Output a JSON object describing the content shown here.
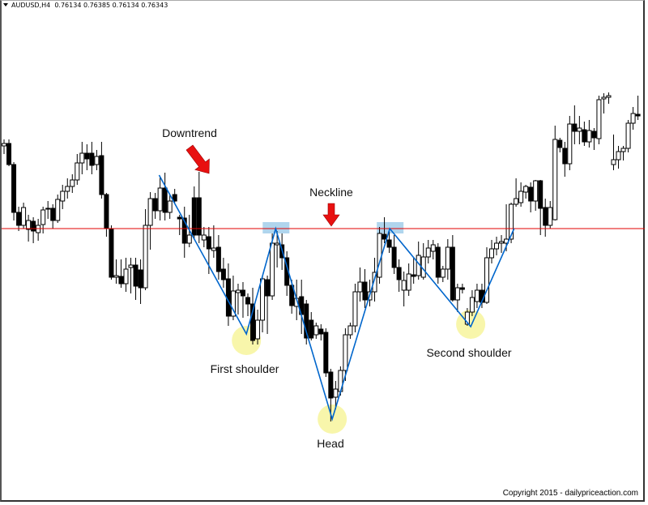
{
  "header": {
    "symbol": "AUDUSD,H4",
    "ohlc": "0.76134 0.76385 0.76134 0.76343"
  },
  "copyright": "Copyright 2015 - dailypriceaction.com",
  "colors": {
    "neckline": "#e00000",
    "pattern_line": "#0066cc",
    "highlight_circle": "#f7f59c",
    "highlight_box": "#9ccbe8",
    "arrow": "#e81010",
    "bull_body": "#ffffff",
    "bear_body": "#000000"
  },
  "chart_data": {
    "type": "candlestick",
    "title": "AUDUSD,H4",
    "grid": false,
    "neckline": 0.7471,
    "candles": [
      [
        0.7573,
        0.7581,
        0.7563,
        0.7576
      ],
      [
        0.7576,
        0.7581,
        0.7548,
        0.755
      ],
      [
        0.755,
        0.7553,
        0.7481,
        0.7491
      ],
      [
        0.7491,
        0.7498,
        0.7468,
        0.7475
      ],
      [
        0.7475,
        0.7503,
        0.7471,
        0.7497
      ],
      [
        0.747,
        0.7488,
        0.7455,
        0.7481
      ],
      [
        0.748,
        0.7485,
        0.7453,
        0.7468
      ],
      [
        0.7466,
        0.7483,
        0.7456,
        0.7475
      ],
      [
        0.7476,
        0.7498,
        0.7465,
        0.7494
      ],
      [
        0.7495,
        0.7505,
        0.7483,
        0.7496
      ],
      [
        0.7496,
        0.7501,
        0.7471,
        0.7481
      ],
      [
        0.7481,
        0.7513,
        0.7478,
        0.7507
      ],
      [
        0.7505,
        0.7525,
        0.7495,
        0.7517
      ],
      [
        0.7517,
        0.7533,
        0.7508,
        0.7523
      ],
      [
        0.7523,
        0.7538,
        0.7515,
        0.7531
      ],
      [
        0.7531,
        0.7563,
        0.7525,
        0.7552
      ],
      [
        0.7552,
        0.7578,
        0.7538,
        0.7564
      ],
      [
        0.7564,
        0.7575,
        0.7543,
        0.7557
      ],
      [
        0.7564,
        0.7578,
        0.7538,
        0.7549
      ],
      [
        0.755,
        0.7568,
        0.7543,
        0.756
      ],
      [
        0.7561,
        0.7578,
        0.7508,
        0.7513
      ],
      [
        0.7513,
        0.7515,
        0.7461,
        0.7471
      ],
      [
        0.7471,
        0.7475,
        0.7408,
        0.7411
      ],
      [
        0.7411,
        0.7433,
        0.7403,
        0.7413
      ],
      [
        0.7412,
        0.7433,
        0.7398,
        0.7403
      ],
      [
        0.7403,
        0.7435,
        0.7393,
        0.7421
      ],
      [
        0.7423,
        0.7435,
        0.7391,
        0.7426
      ],
      [
        0.7426,
        0.7435,
        0.7383,
        0.74
      ],
      [
        0.742,
        0.7433,
        0.7378,
        0.7398
      ],
      [
        0.7398,
        0.7495,
        0.7395,
        0.7475
      ],
      [
        0.7475,
        0.7516,
        0.7445,
        0.7508
      ],
      [
        0.7508,
        0.7515,
        0.7483,
        0.7493
      ],
      [
        0.7493,
        0.7535,
        0.7481,
        0.7521
      ],
      [
        0.7521,
        0.754,
        0.7481,
        0.7491
      ],
      [
        0.7491,
        0.7513,
        0.7483,
        0.7505
      ],
      [
        0.7513,
        0.752,
        0.7503,
        0.7505
      ],
      [
        0.7485,
        0.7488,
        0.7463,
        0.7483
      ],
      [
        0.7484,
        0.7498,
        0.7435,
        0.7453
      ],
      [
        0.7453,
        0.7488,
        0.7448,
        0.7463
      ],
      [
        0.7509,
        0.7523,
        0.7458,
        0.7463
      ],
      [
        0.7509,
        0.7541,
        0.7453,
        0.7463
      ],
      [
        0.7457,
        0.7473,
        0.7448,
        0.7463
      ],
      [
        0.7461,
        0.7473,
        0.7415,
        0.7446
      ],
      [
        0.7444,
        0.7475,
        0.7435,
        0.7447
      ],
      [
        0.7448,
        0.7463,
        0.7408,
        0.7418
      ],
      [
        0.7421,
        0.7435,
        0.7398,
        0.7408
      ],
      [
        0.7409,
        0.7428,
        0.7351,
        0.7363
      ],
      [
        0.7363,
        0.7413,
        0.7358,
        0.7394
      ],
      [
        0.7392,
        0.7403,
        0.7365,
        0.7395
      ],
      [
        0.7395,
        0.7405,
        0.7361,
        0.7388
      ],
      [
        0.7386,
        0.7391,
        0.7363,
        0.7378
      ],
      [
        0.7378,
        0.7398,
        0.7328,
        0.7333
      ],
      [
        0.7335,
        0.7371,
        0.7328,
        0.7358
      ],
      [
        0.7358,
        0.7413,
        0.7343,
        0.7409
      ],
      [
        0.7408,
        0.7413,
        0.7341,
        0.7388
      ],
      [
        0.7388,
        0.7465,
        0.7383,
        0.7453
      ],
      [
        0.7451,
        0.7468,
        0.7423,
        0.7453
      ],
      [
        0.7451,
        0.7465,
        0.742,
        0.7435
      ],
      [
        0.7435,
        0.7443,
        0.7388,
        0.7401
      ],
      [
        0.7401,
        0.7408,
        0.7366,
        0.7376
      ],
      [
        0.7375,
        0.7408,
        0.7358,
        0.7385
      ],
      [
        0.7387,
        0.7408,
        0.7341,
        0.7365
      ],
      [
        0.7378,
        0.7383,
        0.7328,
        0.7336
      ],
      [
        0.7358,
        0.7368,
        0.7333,
        0.7336
      ],
      [
        0.734,
        0.7355,
        0.7335,
        0.7351
      ],
      [
        0.7347,
        0.7353,
        0.7333,
        0.7341
      ],
      [
        0.7343,
        0.7348,
        0.7288,
        0.7293
      ],
      [
        0.7294,
        0.7298,
        0.7233,
        0.7262
      ],
      [
        0.7263,
        0.7283,
        0.7248,
        0.7273
      ],
      [
        0.727,
        0.7301,
        0.7265,
        0.7296
      ],
      [
        0.7296,
        0.7348,
        0.7283,
        0.734
      ],
      [
        0.734,
        0.7355,
        0.7335,
        0.7351
      ],
      [
        0.7351,
        0.7403,
        0.7343,
        0.7393
      ],
      [
        0.7393,
        0.7423,
        0.7381,
        0.7405
      ],
      [
        0.7405,
        0.7421,
        0.7373,
        0.7383
      ],
      [
        0.7383,
        0.7408,
        0.7375,
        0.7393
      ],
      [
        0.7393,
        0.7435,
        0.7381,
        0.7417
      ],
      [
        0.7411,
        0.7473,
        0.7403,
        0.7465
      ],
      [
        0.7464,
        0.7485,
        0.7453,
        0.7458
      ],
      [
        0.7457,
        0.7468,
        0.7441,
        0.7448
      ],
      [
        0.7448,
        0.7463,
        0.7415,
        0.7423
      ],
      [
        0.7423,
        0.7433,
        0.7393,
        0.7408
      ],
      [
        0.7395,
        0.7418,
        0.7375,
        0.7407
      ],
      [
        0.7395,
        0.7428,
        0.7388,
        0.7415
      ],
      [
        0.7414,
        0.7435,
        0.7403,
        0.7412
      ],
      [
        0.7413,
        0.7455,
        0.7408,
        0.7438
      ],
      [
        0.7411,
        0.7453,
        0.7408,
        0.7436
      ],
      [
        0.7436,
        0.7457,
        0.7428,
        0.7447
      ],
      [
        0.7443,
        0.7457,
        0.7433,
        0.7451
      ],
      [
        0.7448,
        0.7453,
        0.7403,
        0.7411
      ],
      [
        0.7411,
        0.7425,
        0.7405,
        0.7421
      ],
      [
        0.7421,
        0.7458,
        0.7408,
        0.7448
      ],
      [
        0.7448,
        0.7463,
        0.7381,
        0.7383
      ],
      [
        0.7383,
        0.7403,
        0.7368,
        0.7398
      ],
      [
        0.7398,
        0.7403,
        0.7391,
        0.7396
      ],
      [
        0.7353,
        0.7373,
        0.7351,
        0.7368
      ],
      [
        0.7368,
        0.7395,
        0.7363,
        0.7386
      ],
      [
        0.7381,
        0.7403,
        0.7373,
        0.7395
      ],
      [
        0.7395,
        0.7403,
        0.7373,
        0.738
      ],
      [
        0.738,
        0.7448,
        0.7378,
        0.7435
      ],
      [
        0.7435,
        0.7457,
        0.7428,
        0.7446
      ],
      [
        0.7446,
        0.7461,
        0.7438,
        0.7453
      ],
      [
        0.7453,
        0.7463,
        0.7441,
        0.7455
      ],
      [
        0.7453,
        0.7501,
        0.7443,
        0.7458
      ],
      [
        0.7458,
        0.7503,
        0.7453,
        0.7501
      ],
      [
        0.7501,
        0.7533,
        0.7498,
        0.7508
      ],
      [
        0.7503,
        0.7528,
        0.7498,
        0.7517
      ],
      [
        0.7516,
        0.7525,
        0.7508,
        0.7523
      ],
      [
        0.7522,
        0.7528,
        0.7491,
        0.7505
      ],
      [
        0.7505,
        0.7531,
        0.7493,
        0.753
      ],
      [
        0.753,
        0.7531,
        0.7463,
        0.7496
      ],
      [
        0.7497,
        0.7508,
        0.7461,
        0.7475
      ],
      [
        0.7475,
        0.7505,
        0.7471,
        0.7497
      ],
      [
        0.7482,
        0.7598,
        0.7481,
        0.7581
      ],
      [
        0.758,
        0.7583,
        0.7565,
        0.7571
      ],
      [
        0.757,
        0.7578,
        0.7535,
        0.7551
      ],
      [
        0.7551,
        0.761,
        0.7543,
        0.76
      ],
      [
        0.76,
        0.7623,
        0.7575,
        0.7591
      ],
      [
        0.7591,
        0.761,
        0.7575,
        0.7595
      ],
      [
        0.7593,
        0.7603,
        0.7573,
        0.7578
      ],
      [
        0.7578,
        0.7605,
        0.7571,
        0.7592
      ],
      [
        0.7591,
        0.7595,
        0.7568,
        0.7583
      ],
      [
        0.7582,
        0.7635,
        0.7575,
        0.763
      ],
      [
        0.7631,
        0.7638,
        0.7613,
        0.7633
      ],
      [
        0.7633,
        0.7639,
        0.7625,
        0.7635
      ],
      [
        0.755,
        0.7587,
        0.7543,
        0.7556
      ],
      [
        0.7556,
        0.7573,
        0.7545,
        0.7566
      ],
      [
        0.7566,
        0.7573,
        0.7555,
        0.757
      ],
      [
        0.757,
        0.7605,
        0.7565,
        0.7601
      ],
      [
        0.7601,
        0.7621,
        0.7593,
        0.7613
      ],
      [
        0.7612,
        0.7635,
        0.7605,
        0.761
      ]
    ],
    "pattern_points": [
      [
        31.8,
        0.7537
      ],
      [
        49.7,
        0.7341
      ],
      [
        55.7,
        0.7471
      ],
      [
        67.3,
        0.7236
      ],
      [
        79.1,
        0.7471
      ],
      [
        95.7,
        0.735
      ],
      [
        104.6,
        0.7471
      ]
    ],
    "annotations": {
      "downtrend": "Downtrend",
      "neckline": "Neckline",
      "first_shoulder": "First shoulder",
      "head": "Head",
      "second_shoulder": "Second shoulder"
    }
  }
}
